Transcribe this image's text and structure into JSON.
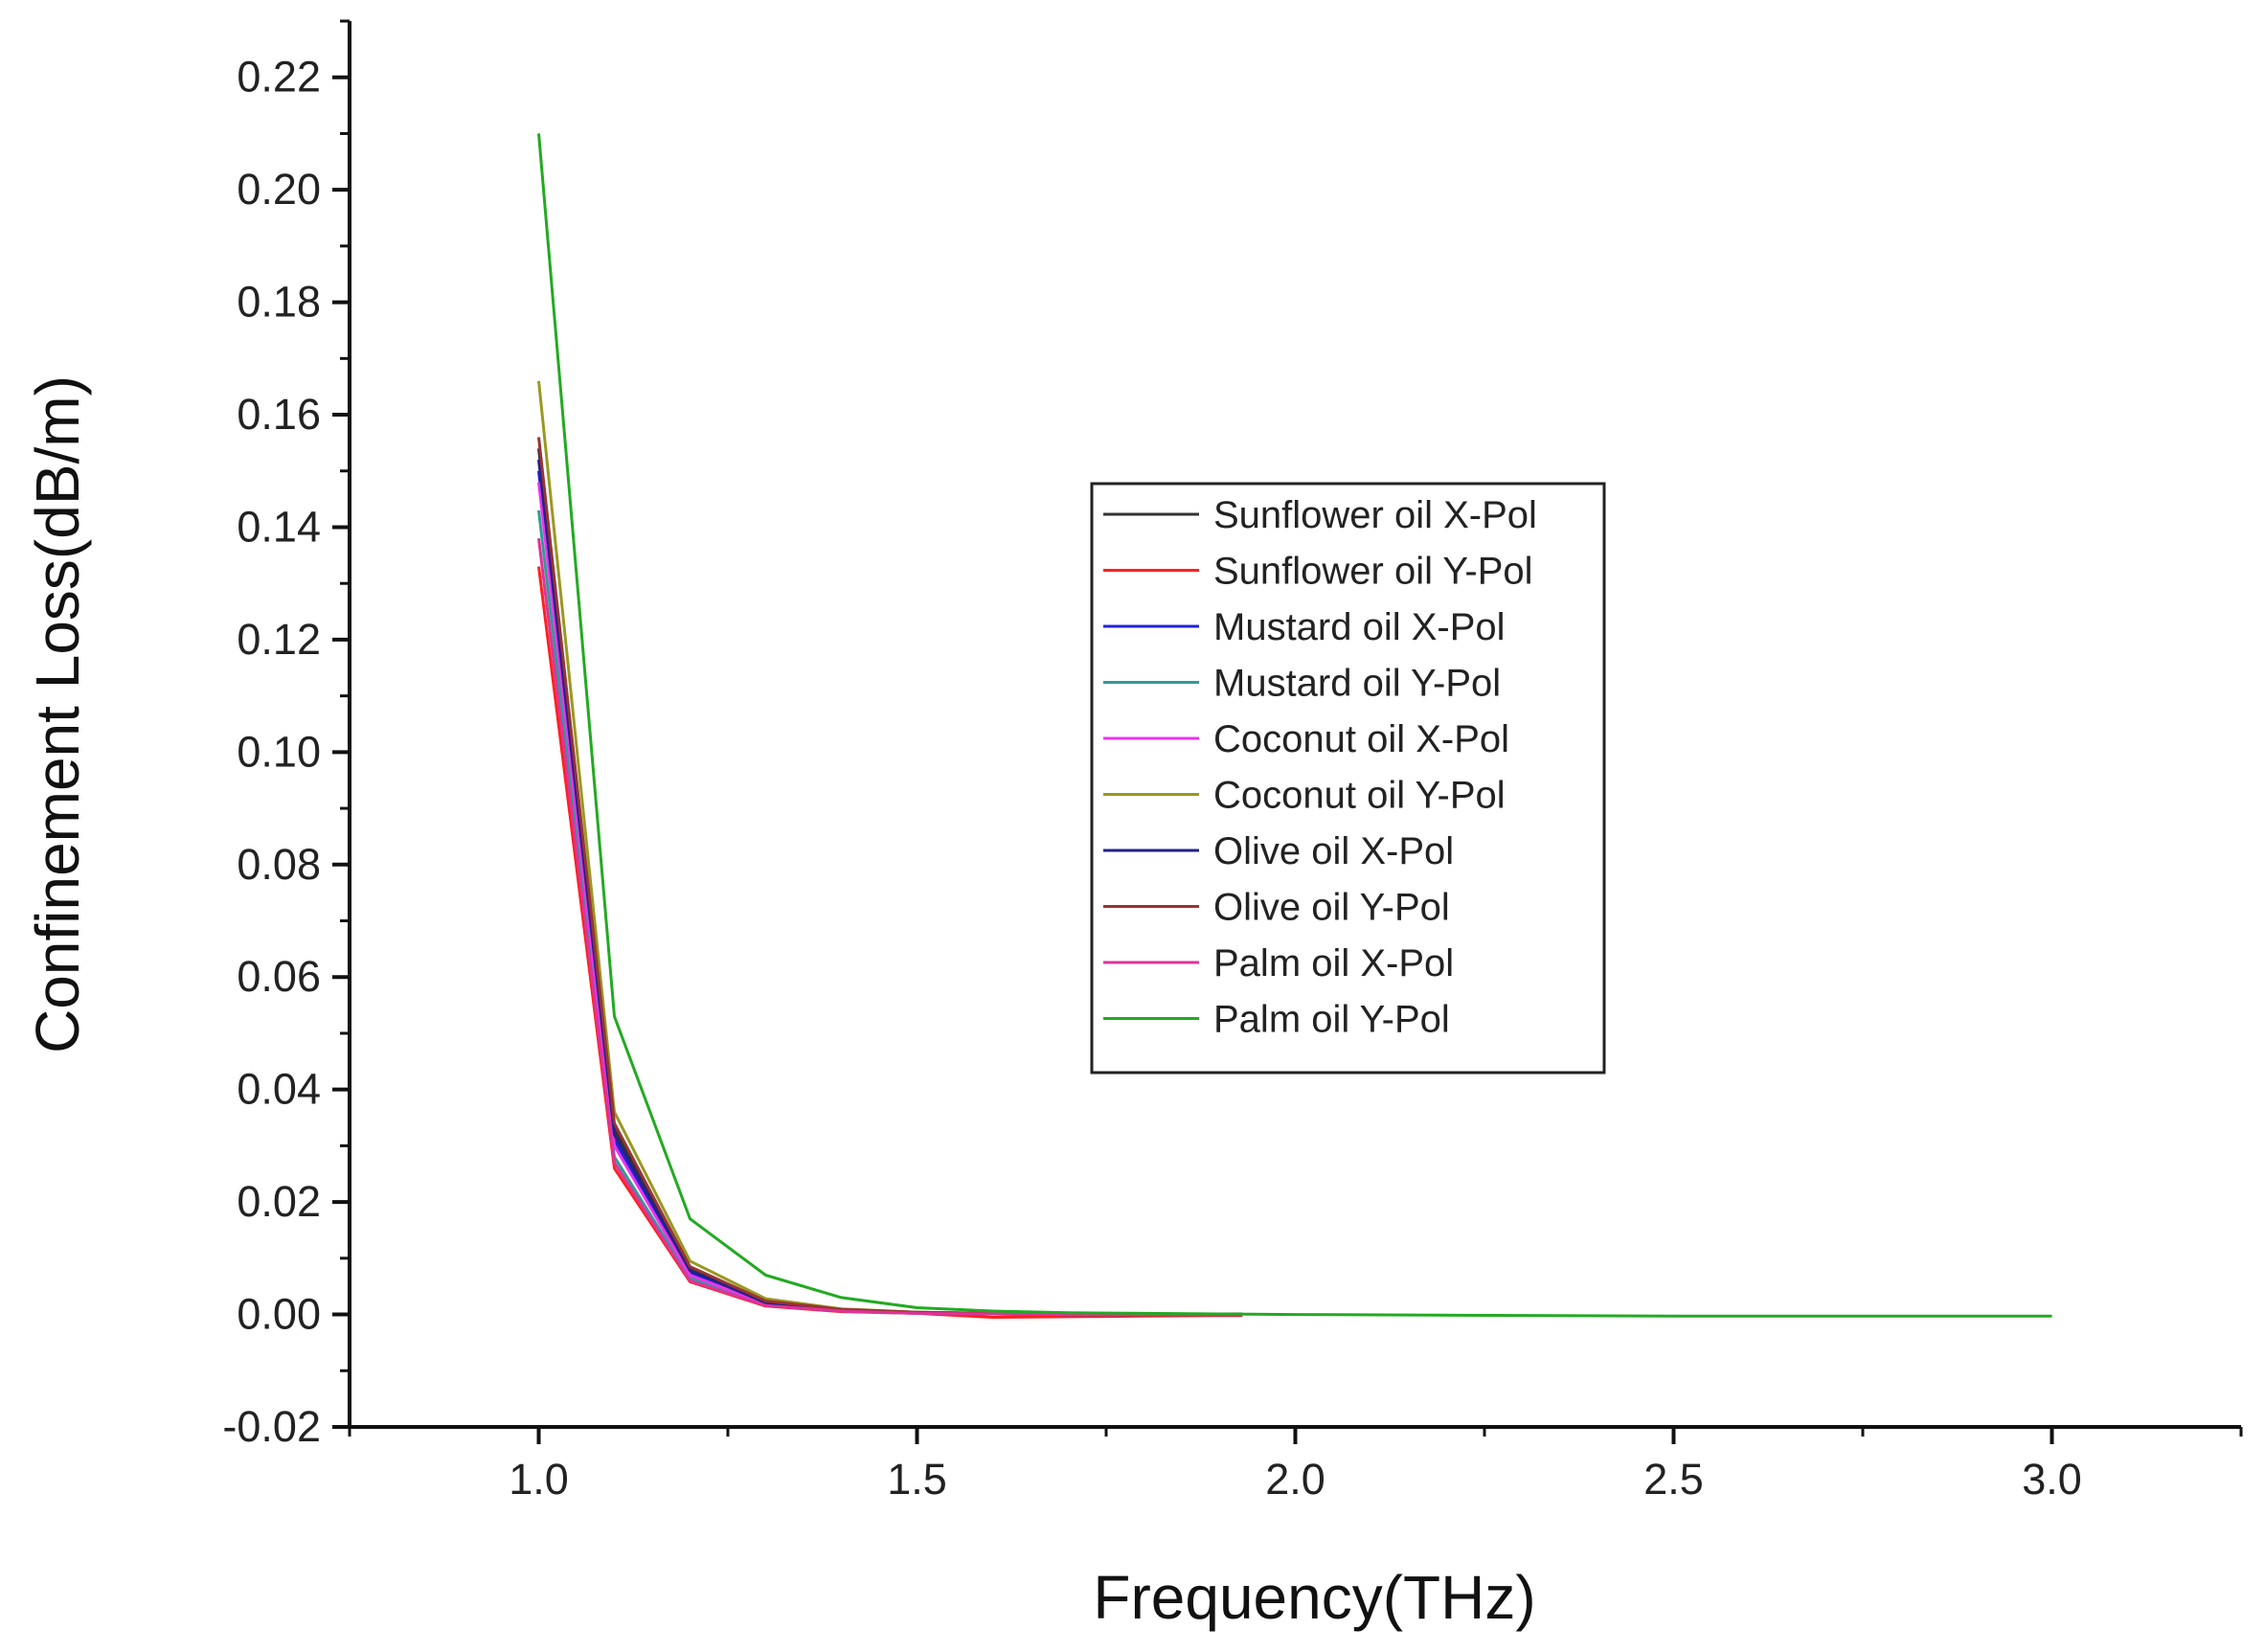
{
  "chart_data": {
    "type": "line",
    "title": "",
    "xlabel": "Frequency(THz)",
    "ylabel": "Confinement Loss(dB/m)",
    "xlim": [
      0.75,
      3.25
    ],
    "ylim": [
      -0.02,
      0.23
    ],
    "xticks": [
      1.0,
      1.5,
      2.0,
      2.5,
      3.0
    ],
    "xtick_labels": [
      "1.0",
      "1.5",
      "2.0",
      "2.5",
      "3.0"
    ],
    "yticks": [
      -0.02,
      0.0,
      0.02,
      0.04,
      0.06,
      0.08,
      0.1,
      0.12,
      0.14,
      0.16,
      0.18,
      0.2,
      0.22
    ],
    "ytick_labels": [
      "-0.02",
      "0.00",
      "0.02",
      "0.04",
      "0.06",
      "0.08",
      "0.10",
      "0.12",
      "0.14",
      "0.16",
      "0.18",
      "0.20",
      "0.22"
    ],
    "grid": false,
    "legend_position": "center-right",
    "series": [
      {
        "name": "Sunflower oil X-Pol",
        "color": "#333333",
        "x": [
          1.0,
          1.1,
          1.2,
          1.3,
          1.4,
          1.5,
          1.6,
          1.7,
          1.8,
          1.9,
          1.93
        ],
        "y": [
          0.154,
          0.033,
          0.008,
          0.002,
          0.0008,
          0.0004,
          0.0002,
          0.0001,
          0.0001,
          0.0001,
          0.0001
        ]
      },
      {
        "name": "Sunflower oil Y-Pol",
        "color": "#ff2020",
        "x": [
          1.0,
          1.1,
          1.2,
          1.3,
          1.4,
          1.5,
          1.6,
          1.7,
          1.8,
          1.9,
          1.93
        ],
        "y": [
          0.133,
          0.026,
          0.0058,
          0.0015,
          0.0005,
          0.0002,
          -0.0005,
          -0.0004,
          -0.0003,
          -0.0002,
          -0.0002
        ]
      },
      {
        "name": "Mustard oil X-Pol",
        "color": "#2222dd",
        "x": [
          1.0,
          1.1,
          1.2,
          1.3,
          1.4,
          1.5,
          1.6,
          1.7,
          1.8,
          1.9,
          1.93
        ],
        "y": [
          0.15,
          0.031,
          0.0075,
          0.002,
          0.0008,
          0.0003,
          0.0001,
          0.0,
          0.0,
          0.0,
          0.0
        ]
      },
      {
        "name": "Mustard oil Y-Pol",
        "color": "#339999",
        "x": [
          1.0,
          1.1,
          1.2,
          1.3,
          1.4,
          1.5,
          1.6,
          1.7,
          1.8,
          1.9,
          1.93
        ],
        "y": [
          0.143,
          0.028,
          0.0065,
          0.0018,
          0.0006,
          0.0002,
          0.0001,
          0.0,
          0.0,
          0.0,
          0.0
        ]
      },
      {
        "name": "Coconut oil X-Pol",
        "color": "#ee33ee",
        "x": [
          1.0,
          1.1,
          1.2,
          1.3,
          1.4,
          1.5,
          1.6,
          1.7,
          1.8,
          1.9,
          1.93
        ],
        "y": [
          0.148,
          0.03,
          0.007,
          0.0019,
          0.0007,
          0.0003,
          0.0001,
          0.0,
          0.0,
          0.0,
          0.0
        ]
      },
      {
        "name": "Coconut oil Y-Pol",
        "color": "#999922",
        "x": [
          1.0,
          1.1,
          1.2,
          1.3,
          1.4,
          1.5,
          1.6,
          1.7,
          1.8,
          1.9,
          1.93
        ],
        "y": [
          0.166,
          0.036,
          0.0095,
          0.0028,
          0.001,
          0.0004,
          0.0002,
          0.0001,
          0.0,
          0.0,
          0.0
        ]
      },
      {
        "name": "Olive oil X-Pol",
        "color": "#222288",
        "x": [
          1.0,
          1.1,
          1.2,
          1.3,
          1.4,
          1.5,
          1.6,
          1.7,
          1.8,
          1.9,
          1.93
        ],
        "y": [
          0.152,
          0.032,
          0.0078,
          0.0021,
          0.0008,
          0.0003,
          0.0001,
          0.0,
          0.0,
          0.0,
          0.0
        ]
      },
      {
        "name": "Olive oil Y-Pol",
        "color": "#993333",
        "x": [
          1.0,
          1.1,
          1.2,
          1.3,
          1.4,
          1.5,
          1.6,
          1.7,
          1.8,
          1.9,
          1.93
        ],
        "y": [
          0.156,
          0.034,
          0.0085,
          0.0024,
          0.0009,
          0.0004,
          0.0002,
          0.0001,
          0.0,
          0.0,
          0.0
        ]
      },
      {
        "name": "Palm oil X-Pol",
        "color": "#dd3399",
        "x": [
          1.0,
          1.1,
          1.2,
          1.3,
          1.4,
          1.5,
          1.6,
          1.7,
          1.8,
          1.9,
          1.93
        ],
        "y": [
          0.138,
          0.027,
          0.006,
          0.0016,
          0.0006,
          0.0002,
          0.0001,
          0.0,
          0.0,
          0.0,
          0.0
        ]
      },
      {
        "name": "Palm oil Y-Pol",
        "color": "#22aa22",
        "x": [
          1.0,
          1.1,
          1.2,
          1.3,
          1.4,
          1.5,
          1.6,
          1.7,
          1.8,
          1.9,
          2.0,
          2.5,
          3.0
        ],
        "y": [
          0.21,
          0.053,
          0.017,
          0.007,
          0.003,
          0.0012,
          0.0006,
          0.0003,
          0.0002,
          0.0001,
          0.0,
          -0.0003,
          -0.0003
        ]
      }
    ]
  }
}
